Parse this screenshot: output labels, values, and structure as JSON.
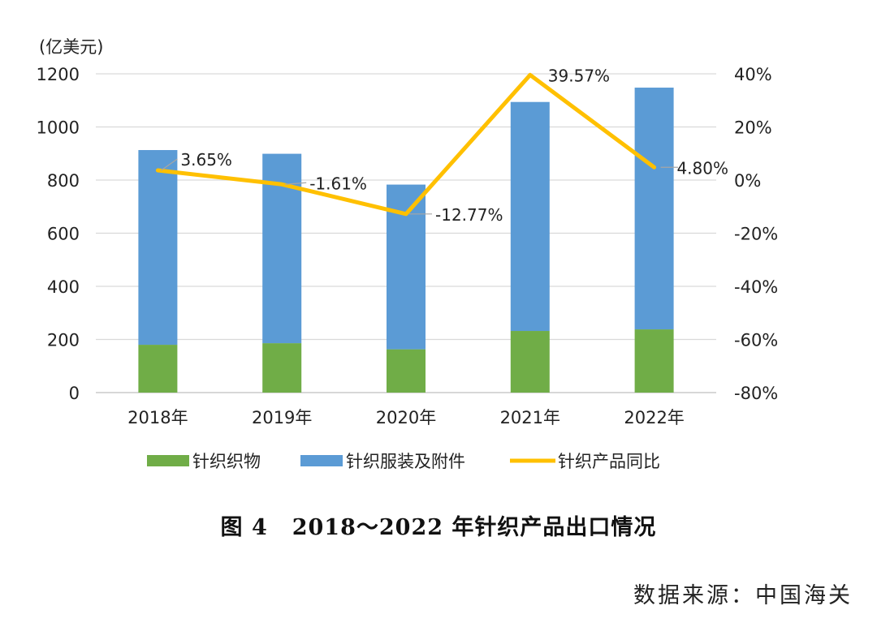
{
  "chart_data": {
    "type": "bar",
    "stacked": true,
    "categories": [
      "2018年",
      "2019年",
      "2020年",
      "2021年",
      "2022年"
    ],
    "ylabel_left": "(亿美元)",
    "ylim_left": [
      0,
      1200
    ],
    "yticks_left": [
      "0",
      "200",
      "400",
      "600",
      "800",
      "1000",
      "1200"
    ],
    "ylim_right": [
      -80,
      40
    ],
    "yticks_right": [
      "-80%",
      "-60%",
      "-40%",
      "-20%",
      "0%",
      "20%",
      "40%"
    ],
    "grid": true,
    "legend_position": "bottom",
    "series": [
      {
        "name": "针织织物",
        "type": "bar",
        "axis": "left",
        "color": "#70ad47",
        "values": [
          180,
          186,
          163,
          232,
          238
        ]
      },
      {
        "name": "针织服装及附件",
        "type": "bar",
        "axis": "left",
        "color": "#5b9bd5",
        "values": [
          733,
          713,
          620,
          862,
          910
        ]
      },
      {
        "name": "针织产品同比",
        "type": "line",
        "axis": "right",
        "color": "#ffc000",
        "values": [
          3.65,
          -1.61,
          -12.77,
          39.57,
          4.8
        ],
        "labels": [
          "3.65%",
          "-1.61%",
          "-12.77%",
          "39.57%",
          "4.80%"
        ]
      }
    ]
  },
  "caption": {
    "figure": "图 4",
    "text": "2018～2022 年针织产品出口情况"
  },
  "source": {
    "text": "数据来源：中国海关"
  }
}
